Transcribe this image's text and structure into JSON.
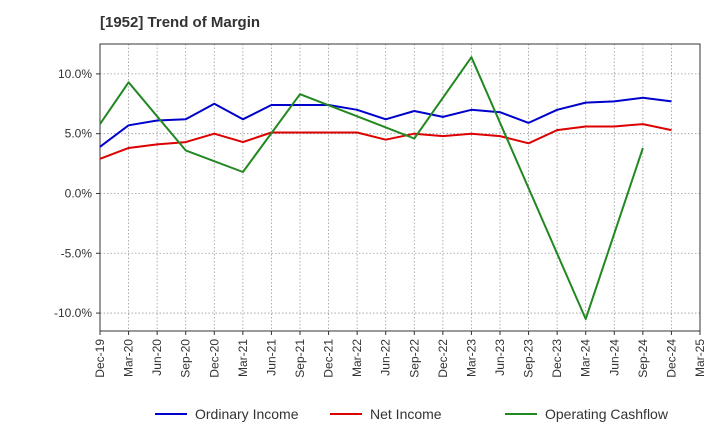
{
  "title": "[1952]  Trend of Margin",
  "colors": {
    "ordinary": "#0000cc",
    "net": "#dd0000",
    "cashflow": "#228822",
    "grid": "#999999",
    "axis": "#333333"
  },
  "chart_data": {
    "type": "line",
    "title": "[1952]  Trend of Margin",
    "xlabel": "",
    "ylabel": "",
    "ylim": [
      -11.5,
      12.5
    ],
    "y_ticks": [
      10.0,
      5.0,
      0.0,
      -5.0,
      -10.0
    ],
    "y_tick_labels": [
      "10.0%",
      "5.0%",
      "0.0%",
      "-5.0%",
      "-10.0%"
    ],
    "x": [
      "Dec-19",
      "Mar-20",
      "Jun-20",
      "Sep-20",
      "Dec-20",
      "Mar-21",
      "Jun-21",
      "Sep-21",
      "Dec-21",
      "Mar-22",
      "Jun-22",
      "Sep-22",
      "Dec-22",
      "Mar-23",
      "Jun-23",
      "Sep-23",
      "Dec-23",
      "Mar-24",
      "Jun-24",
      "Sep-24",
      "Dec-24",
      "Mar-25"
    ],
    "grid": true,
    "legend_position": "bottom",
    "series": [
      {
        "name": "Ordinary Income",
        "color": "#0000cc",
        "values": [
          3.9,
          5.7,
          6.1,
          6.2,
          7.5,
          6.2,
          7.4,
          7.4,
          7.4,
          7.0,
          6.2,
          6.9,
          6.4,
          7.0,
          6.8,
          5.9,
          7.0,
          7.6,
          7.7,
          8.0,
          7.7,
          null
        ]
      },
      {
        "name": "Net Income",
        "color": "#dd0000",
        "values": [
          2.9,
          3.8,
          4.1,
          4.3,
          5.0,
          4.3,
          5.1,
          5.1,
          5.1,
          5.1,
          4.5,
          5.0,
          4.8,
          5.0,
          4.8,
          4.2,
          5.3,
          5.6,
          5.6,
          5.8,
          5.3,
          null
        ]
      },
      {
        "name": "Operating Cashflow",
        "color": "#228822",
        "values": [
          5.8,
          9.3,
          null,
          3.6,
          null,
          1.8,
          null,
          8.3,
          null,
          null,
          null,
          4.6,
          null,
          11.4,
          null,
          null,
          null,
          -10.5,
          null,
          3.8,
          null,
          null
        ]
      }
    ]
  },
  "legend": [
    {
      "label": "Ordinary Income",
      "color": "#0000cc"
    },
    {
      "label": "Net Income",
      "color": "#dd0000"
    },
    {
      "label": "Operating Cashflow",
      "color": "#228822"
    }
  ]
}
